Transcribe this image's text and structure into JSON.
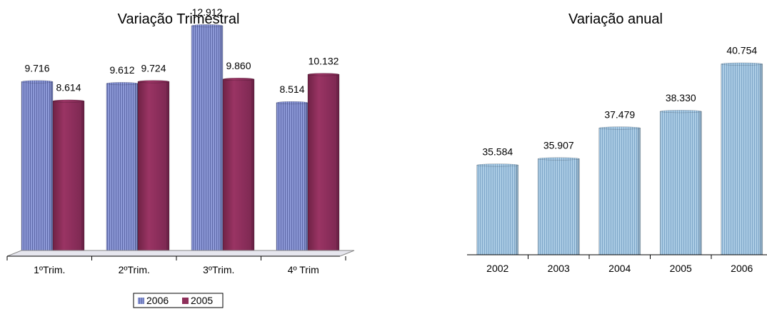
{
  "colors": {
    "series_2006": "#7f8cc8",
    "series_2005": "#8e2f5a",
    "annual": "#9cc0dc"
  },
  "chart_data": [
    {
      "type": "bar",
      "title": "Variação Trimestral",
      "categories": [
        "1ºTrim.",
        "2ºTrim.",
        "3ºTrim.",
        "4º Trim"
      ],
      "series": [
        {
          "name": "2006",
          "values": [
            9716,
            9612,
            12912,
            8514
          ],
          "labels": [
            "9.716",
            "9.612",
            "12.912",
            "8.514"
          ]
        },
        {
          "name": "2005",
          "values": [
            8614,
            9724,
            9860,
            10132
          ],
          "labels": [
            "8.614",
            "9.724",
            "9.860",
            "10.132"
          ]
        }
      ],
      "ylim": [
        0,
        13000
      ],
      "legend": "bottom",
      "grid": false
    },
    {
      "type": "bar",
      "title": "Variação anual",
      "categories": [
        "2002",
        "2003",
        "2004",
        "2005",
        "2006"
      ],
      "values": [
        35584,
        35907,
        37479,
        38330,
        40754
      ],
      "labels": [
        "35.584",
        "35.907",
        "37.479",
        "38.330",
        "40.754"
      ],
      "ylim": [
        31000,
        41000
      ],
      "grid": false
    }
  ]
}
